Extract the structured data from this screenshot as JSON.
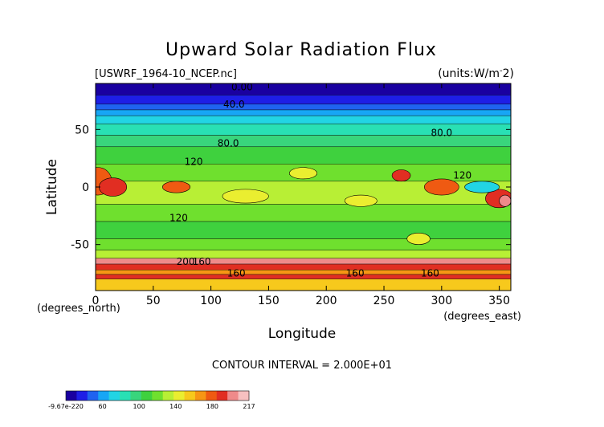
{
  "chart_data": {
    "type": "heatmap",
    "title": "Upward Solar Radiation Flux",
    "subtitle_left": "[USWRF_1964-10_NCEP.nc]",
    "subtitle_right": "(units:W/m^2)",
    "xlabel": "Longitude",
    "ylabel": "Latitude",
    "x_unit_note": "(degrees_east)",
    "y_unit_note": "(degrees_north)",
    "xlim": [
      0,
      360
    ],
    "ylim": [
      -90,
      90
    ],
    "x_ticks": [
      "0",
      "50",
      "100",
      "150",
      "200",
      "250",
      "300",
      "350"
    ],
    "y_ticks": [
      "50",
      "0",
      "-50"
    ],
    "contour_interval_text": "CONTOUR INTERVAL = 2.000E+01",
    "contour_labels": [
      {
        "text": "0.00",
        "lon": 127,
        "lat": 87
      },
      {
        "text": "40.0",
        "lon": 120,
        "lat": 72
      },
      {
        "text": "80.0",
        "lon": 300,
        "lat": 47
      },
      {
        "text": "80.0",
        "lon": 115,
        "lat": 38
      },
      {
        "text": "120",
        "lon": 85,
        "lat": 22
      },
      {
        "text": "120",
        "lon": 318,
        "lat": 10
      },
      {
        "text": "120",
        "lon": 72,
        "lat": -27
      },
      {
        "text": "200",
        "lon": 78,
        "lat": -65
      },
      {
        "text": "160",
        "lon": 92,
        "lat": -65
      },
      {
        "text": "160",
        "lon": 122,
        "lat": -75
      },
      {
        "text": "160",
        "lon": 225,
        "lat": -75
      },
      {
        "text": "160",
        "lon": 290,
        "lat": -75
      }
    ],
    "colorbar": {
      "labels": [
        "-9.67e-220",
        "60",
        "100",
        "140",
        "180",
        "217"
      ],
      "colors": [
        "#1a00a0",
        "#1e1ee6",
        "#1f63f0",
        "#17a6f5",
        "#22d4e4",
        "#29e0b4",
        "#39d57c",
        "#3fd13e",
        "#6fe02e",
        "#b8ef35",
        "#eaee30",
        "#f7c91c",
        "#f79614",
        "#ef5a12",
        "#e12e22",
        "#ef8a8a",
        "#f7c0c0"
      ]
    },
    "lat_bands": [
      {
        "lat_from": 90,
        "lat_to": 80,
        "value": 5,
        "color": "#1a00a0"
      },
      {
        "lat_from": 80,
        "lat_to": 72,
        "value": 20,
        "color": "#1e1ee6"
      },
      {
        "lat_from": 72,
        "lat_to": 67,
        "value": 35,
        "color": "#1f63f0"
      },
      {
        "lat_from": 67,
        "lat_to": 62,
        "value": 50,
        "color": "#17a6f5"
      },
      {
        "lat_from": 62,
        "lat_to": 55,
        "value": 65,
        "color": "#22d4e4"
      },
      {
        "lat_from": 55,
        "lat_to": 45,
        "value": 80,
        "color": "#29e0b4"
      },
      {
        "lat_from": 45,
        "lat_to": 35,
        "value": 95,
        "color": "#39d57c"
      },
      {
        "lat_from": 35,
        "lat_to": 20,
        "value": 110,
        "color": "#3fd13e"
      },
      {
        "lat_from": 20,
        "lat_to": 5,
        "value": 125,
        "color": "#6fe02e"
      },
      {
        "lat_from": 5,
        "lat_to": -15,
        "value": 135,
        "color": "#b8ef35"
      },
      {
        "lat_from": -15,
        "lat_to": -30,
        "value": 120,
        "color": "#6fe02e"
      },
      {
        "lat_from": -30,
        "lat_to": -45,
        "value": 110,
        "color": "#3fd13e"
      },
      {
        "lat_from": -45,
        "lat_to": -55,
        "value": 125,
        "color": "#6fe02e"
      },
      {
        "lat_from": -55,
        "lat_to": -62,
        "value": 140,
        "color": "#b8ef35"
      },
      {
        "lat_from": -62,
        "lat_to": -67,
        "value": 200,
        "color": "#ef8a8a"
      },
      {
        "lat_from": -67,
        "lat_to": -72,
        "value": 185,
        "color": "#e12e22"
      },
      {
        "lat_from": -72,
        "lat_to": -76,
        "value": 165,
        "color": "#f79614"
      },
      {
        "lat_from": -76,
        "lat_to": -80,
        "value": 185,
        "color": "#e12e22"
      },
      {
        "lat_from": -80,
        "lat_to": -90,
        "value": 155,
        "color": "#f7c91c"
      }
    ],
    "features": [
      {
        "lon": 2,
        "lat": 5,
        "rlon": 12,
        "rlat": 12,
        "value": 180,
        "color": "#ef5a12"
      },
      {
        "lon": 15,
        "lat": 0,
        "rlon": 12,
        "rlat": 8,
        "value": 190,
        "color": "#e12e22"
      },
      {
        "lon": 70,
        "lat": 0,
        "rlon": 12,
        "rlat": 5,
        "value": 180,
        "color": "#ef5a12"
      },
      {
        "lon": 265,
        "lat": 10,
        "rlon": 8,
        "rlat": 5,
        "value": 190,
        "color": "#e12e22"
      },
      {
        "lon": 300,
        "lat": 0,
        "rlon": 15,
        "rlat": 7,
        "value": 180,
        "color": "#ef5a12"
      },
      {
        "lon": 350,
        "lat": -10,
        "rlon": 12,
        "rlat": 8,
        "value": 190,
        "color": "#e12e22"
      },
      {
        "lon": 355,
        "lat": -12,
        "rlon": 5,
        "rlat": 5,
        "value": 210,
        "color": "#ef8a8a"
      },
      {
        "lon": 335,
        "lat": 0,
        "rlon": 15,
        "rlat": 5,
        "value": 60,
        "color": "#22d4e4"
      },
      {
        "lon": 180,
        "lat": 12,
        "rlon": 12,
        "rlat": 5,
        "value": 140,
        "color": "#eaee30"
      },
      {
        "lon": 230,
        "lat": -12,
        "rlon": 14,
        "rlat": 5,
        "value": 140,
        "color": "#eaee30"
      },
      {
        "lon": 280,
        "lat": -45,
        "rlon": 10,
        "rlat": 5,
        "value": 140,
        "color": "#eaee30"
      },
      {
        "lon": 130,
        "lat": -8,
        "rlon": 20,
        "rlat": 6,
        "value": 140,
        "color": "#eaee30"
      }
    ]
  }
}
